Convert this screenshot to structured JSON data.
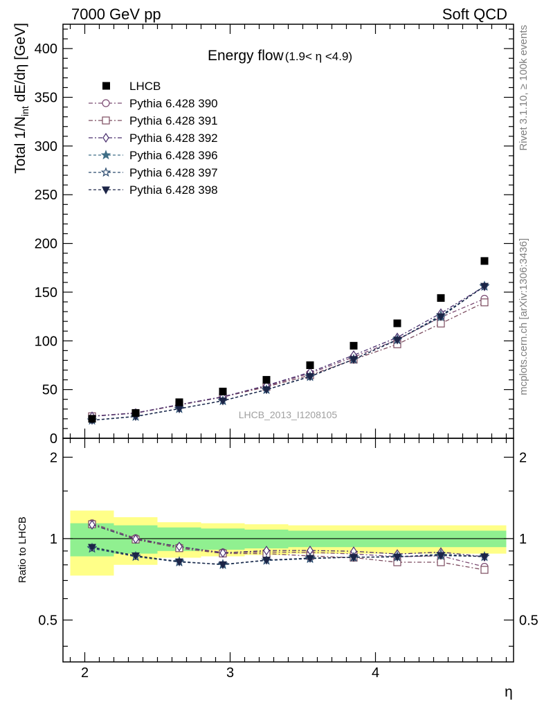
{
  "header": {
    "left": "7000 GeV pp",
    "right": "Soft QCD"
  },
  "side_labels": {
    "rivet": "Rivet 3.1.10, ≥ 100k events",
    "mcplots": "mcplots.cern.ch [arXiv:1306:3436]"
  },
  "chart_data": {
    "type": "scatter",
    "title_main": "Energy flow",
    "title_sub": "(1.9< η <4.9)",
    "analysis_label": "LHCB_2013_I1208105",
    "xlabel": "η",
    "ylabel_upper": "Total 1/N_int dE/dη [GeV]",
    "ylabel_lower": "Ratio to LHCB",
    "xlim": [
      1.85,
      4.95
    ],
    "ylim_upper": [
      0,
      425
    ],
    "ylim_lower": [
      0.35,
      2.35
    ],
    "x_ticks": [
      2,
      3,
      4
    ],
    "y_ticks_upper": [
      0,
      50,
      100,
      150,
      200,
      250,
      300,
      350,
      400
    ],
    "y_ticks_lower": [
      0.5,
      1,
      2
    ],
    "y_tick_labels_upper": [
      "0",
      "50",
      "100",
      "150",
      "200",
      "250",
      "300",
      "350",
      "400"
    ],
    "y_tick_labels_lower": [
      "0.5",
      "1",
      "2"
    ],
    "x_tick_labels": [
      "2",
      "3",
      "4"
    ],
    "x": [
      2.05,
      2.35,
      2.65,
      2.95,
      3.25,
      3.55,
      3.85,
      4.15,
      4.45,
      4.75
    ],
    "bin_edges": [
      1.9,
      2.2,
      2.5,
      2.8,
      3.1,
      3.4,
      3.7,
      4.0,
      4.3,
      4.6,
      4.9
    ],
    "data": {
      "name": "LHCB",
      "values": [
        20,
        26,
        37,
        48,
        60,
        75,
        95,
        118,
        144,
        182
      ],
      "band_inner": [
        0.14,
        0.12,
        0.1,
        0.09,
        0.08,
        0.07,
        0.07,
        0.07,
        0.07,
        0.07
      ],
      "band_outer": [
        0.27,
        0.2,
        0.15,
        0.14,
        0.13,
        0.12,
        0.12,
        0.12,
        0.12,
        0.12
      ]
    },
    "series": [
      {
        "name": "Pythia 6.428 390",
        "color": "#7b4a72",
        "dash": "6,3,2,3",
        "marker": "circle-open",
        "values": [
          22.8,
          26.1,
          34.4,
          42.7,
          53.5,
          66.7,
          83.4,
          101.2,
          124.3,
          143.2
        ]
      },
      {
        "name": "Pythia 6.428 391",
        "color": "#7b4a5e",
        "dash": "6,3,2,3",
        "marker": "square-open",
        "values": [
          22.6,
          25.8,
          34.1,
          42.3,
          52.8,
          64.7,
          80.8,
          96.5,
          117.8,
          139.5
        ]
      },
      {
        "name": "Pythia 6.428 392",
        "color": "#4a2f6e",
        "dash": "6,3,2,3",
        "marker": "diamond-open",
        "values": [
          22.5,
          25.9,
          34.6,
          42.5,
          54.2,
          67.8,
          85.3,
          103.5,
          128.4,
          156.0
        ]
      },
      {
        "name": "Pythia 6.428 396",
        "color": "#3f6e86",
        "dash": "4,3",
        "marker": "star-filled",
        "values": [
          18.5,
          22.4,
          30.5,
          38.4,
          49.9,
          63.6,
          80.9,
          101.5,
          124.5,
          156.5
        ]
      },
      {
        "name": "Pythia 6.428 397",
        "color": "#2a4a6e",
        "dash": "4,3",
        "marker": "star-open",
        "values": [
          18.4,
          22.3,
          30.3,
          38.6,
          49.8,
          63.2,
          81.2,
          100.9,
          126.2,
          155.8
        ]
      },
      {
        "name": "Pythia 6.428 398",
        "color": "#1c2547",
        "dash": "4,3",
        "marker": "triangle-down-filled",
        "values": [
          18.6,
          22.5,
          30.4,
          38.5,
          50.0,
          63.5,
          81.0,
          101.0,
          125.0,
          156.2
        ]
      }
    ]
  }
}
